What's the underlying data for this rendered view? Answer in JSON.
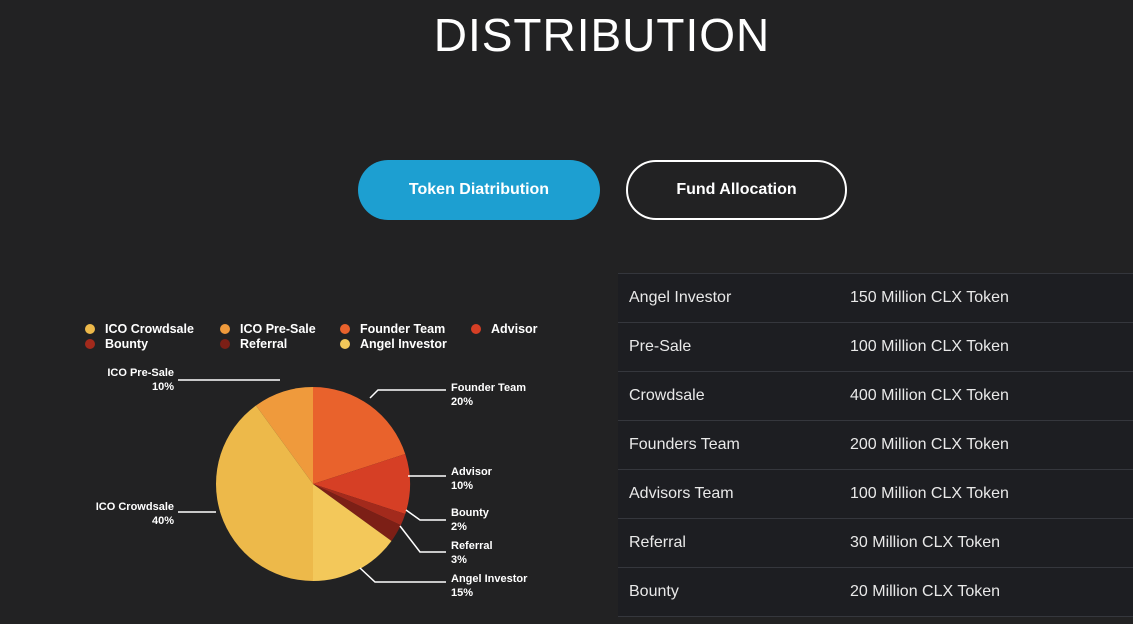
{
  "page": {
    "title": "DISTRIBUTION"
  },
  "tabs": {
    "token_label": "Token Diatribution",
    "fund_label": "Fund Allocation"
  },
  "colors": {
    "accent": "#1d9fd1",
    "background": "#222223",
    "ico_crowdsale": "#edb94a",
    "ico_presale": "#ef9a3c",
    "founder_team": "#e9622c",
    "advisor": "#d63f25",
    "bounty": "#a32a1c",
    "referral": "#7c1f16",
    "angel_investor": "#f3c85a"
  },
  "chart_data": {
    "type": "pie",
    "legend": [
      "ICO Crowdsale",
      "ICO Pre-Sale",
      "Founder Team",
      "Advisor",
      "Bounty",
      "Referral",
      "Angel Investor"
    ],
    "slices": [
      {
        "name": "ICO Pre-Sale",
        "label": "ICO Pre-Sale",
        "pct_label": "10%",
        "value": 10,
        "color": "#ef9a3c"
      },
      {
        "name": "Founder Team",
        "label": "Founder Team",
        "pct_label": "20%",
        "value": 20,
        "color": "#e9622c"
      },
      {
        "name": "Advisor",
        "label": "Advisor",
        "pct_label": "10%",
        "value": 10,
        "color": "#d63f25"
      },
      {
        "name": "Bounty",
        "label": "Bounty",
        "pct_label": "2%",
        "value": 2,
        "color": "#a32a1c"
      },
      {
        "name": "Referral",
        "label": "Referral",
        "pct_label": "3%",
        "value": 3,
        "color": "#7c1f16"
      },
      {
        "name": "Angel Investor",
        "label": "Angel Investor",
        "pct_label": "15%",
        "value": 15,
        "color": "#f3c85a"
      },
      {
        "name": "ICO Crowdsale",
        "label": "ICO Crowdsale",
        "pct_label": "40%",
        "value": 40,
        "color": "#edb94a"
      }
    ]
  },
  "table": {
    "rows": [
      {
        "label": "Angel Investor",
        "value": "150 Million CLX Token"
      },
      {
        "label": "Pre-Sale",
        "value": "100 Million CLX Token"
      },
      {
        "label": "Crowdsale",
        "value": "400 Million CLX Token"
      },
      {
        "label": "Founders Team",
        "value": "200 Million CLX Token"
      },
      {
        "label": "Advisors Team",
        "value": "100 Million CLX Token"
      },
      {
        "label": "Referral",
        "value": "30 Million CLX Token"
      },
      {
        "label": "Bounty",
        "value": "20 Million CLX Token"
      }
    ]
  }
}
